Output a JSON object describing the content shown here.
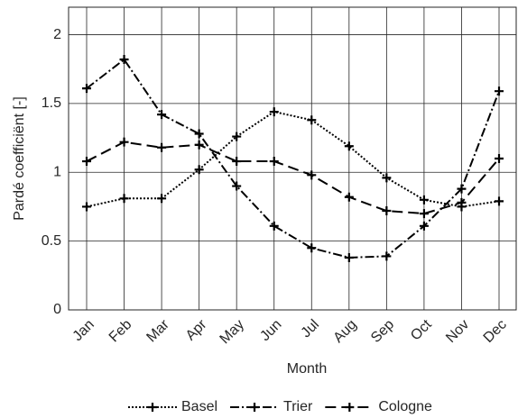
{
  "chart_data": {
    "type": "line",
    "x_label": "Month",
    "y_label": "Pardé coefficiënt [-]",
    "categories": [
      "Jan",
      "Feb",
      "Mar",
      "Apr",
      "May",
      "Jun",
      "Jul",
      "Aug",
      "Sep",
      "Oct",
      "Nov",
      "Dec"
    ],
    "series": [
      {
        "name": "Basel",
        "color": "#000000",
        "style": "dotted",
        "values": [
          0.75,
          0.81,
          0.81,
          1.02,
          1.26,
          1.44,
          1.38,
          1.19,
          0.96,
          0.8,
          0.75,
          0.79
        ]
      },
      {
        "name": "Trier",
        "color": "#000000",
        "style": "dashdot",
        "values": [
          1.61,
          1.82,
          1.42,
          1.28,
          0.9,
          0.61,
          0.45,
          0.38,
          0.39,
          0.61,
          0.88,
          1.59
        ]
      },
      {
        "name": "Cologne",
        "color": "#000000",
        "style": "dashed",
        "values": [
          1.08,
          1.22,
          1.18,
          1.2,
          1.08,
          1.08,
          0.98,
          0.82,
          0.72,
          0.7,
          0.78,
          1.1
        ]
      }
    ],
    "ylim": [
      0,
      2.2
    ],
    "yticks": [
      0,
      0.5,
      1,
      1.5,
      2
    ],
    "grid": true,
    "legend": "bottom"
  }
}
